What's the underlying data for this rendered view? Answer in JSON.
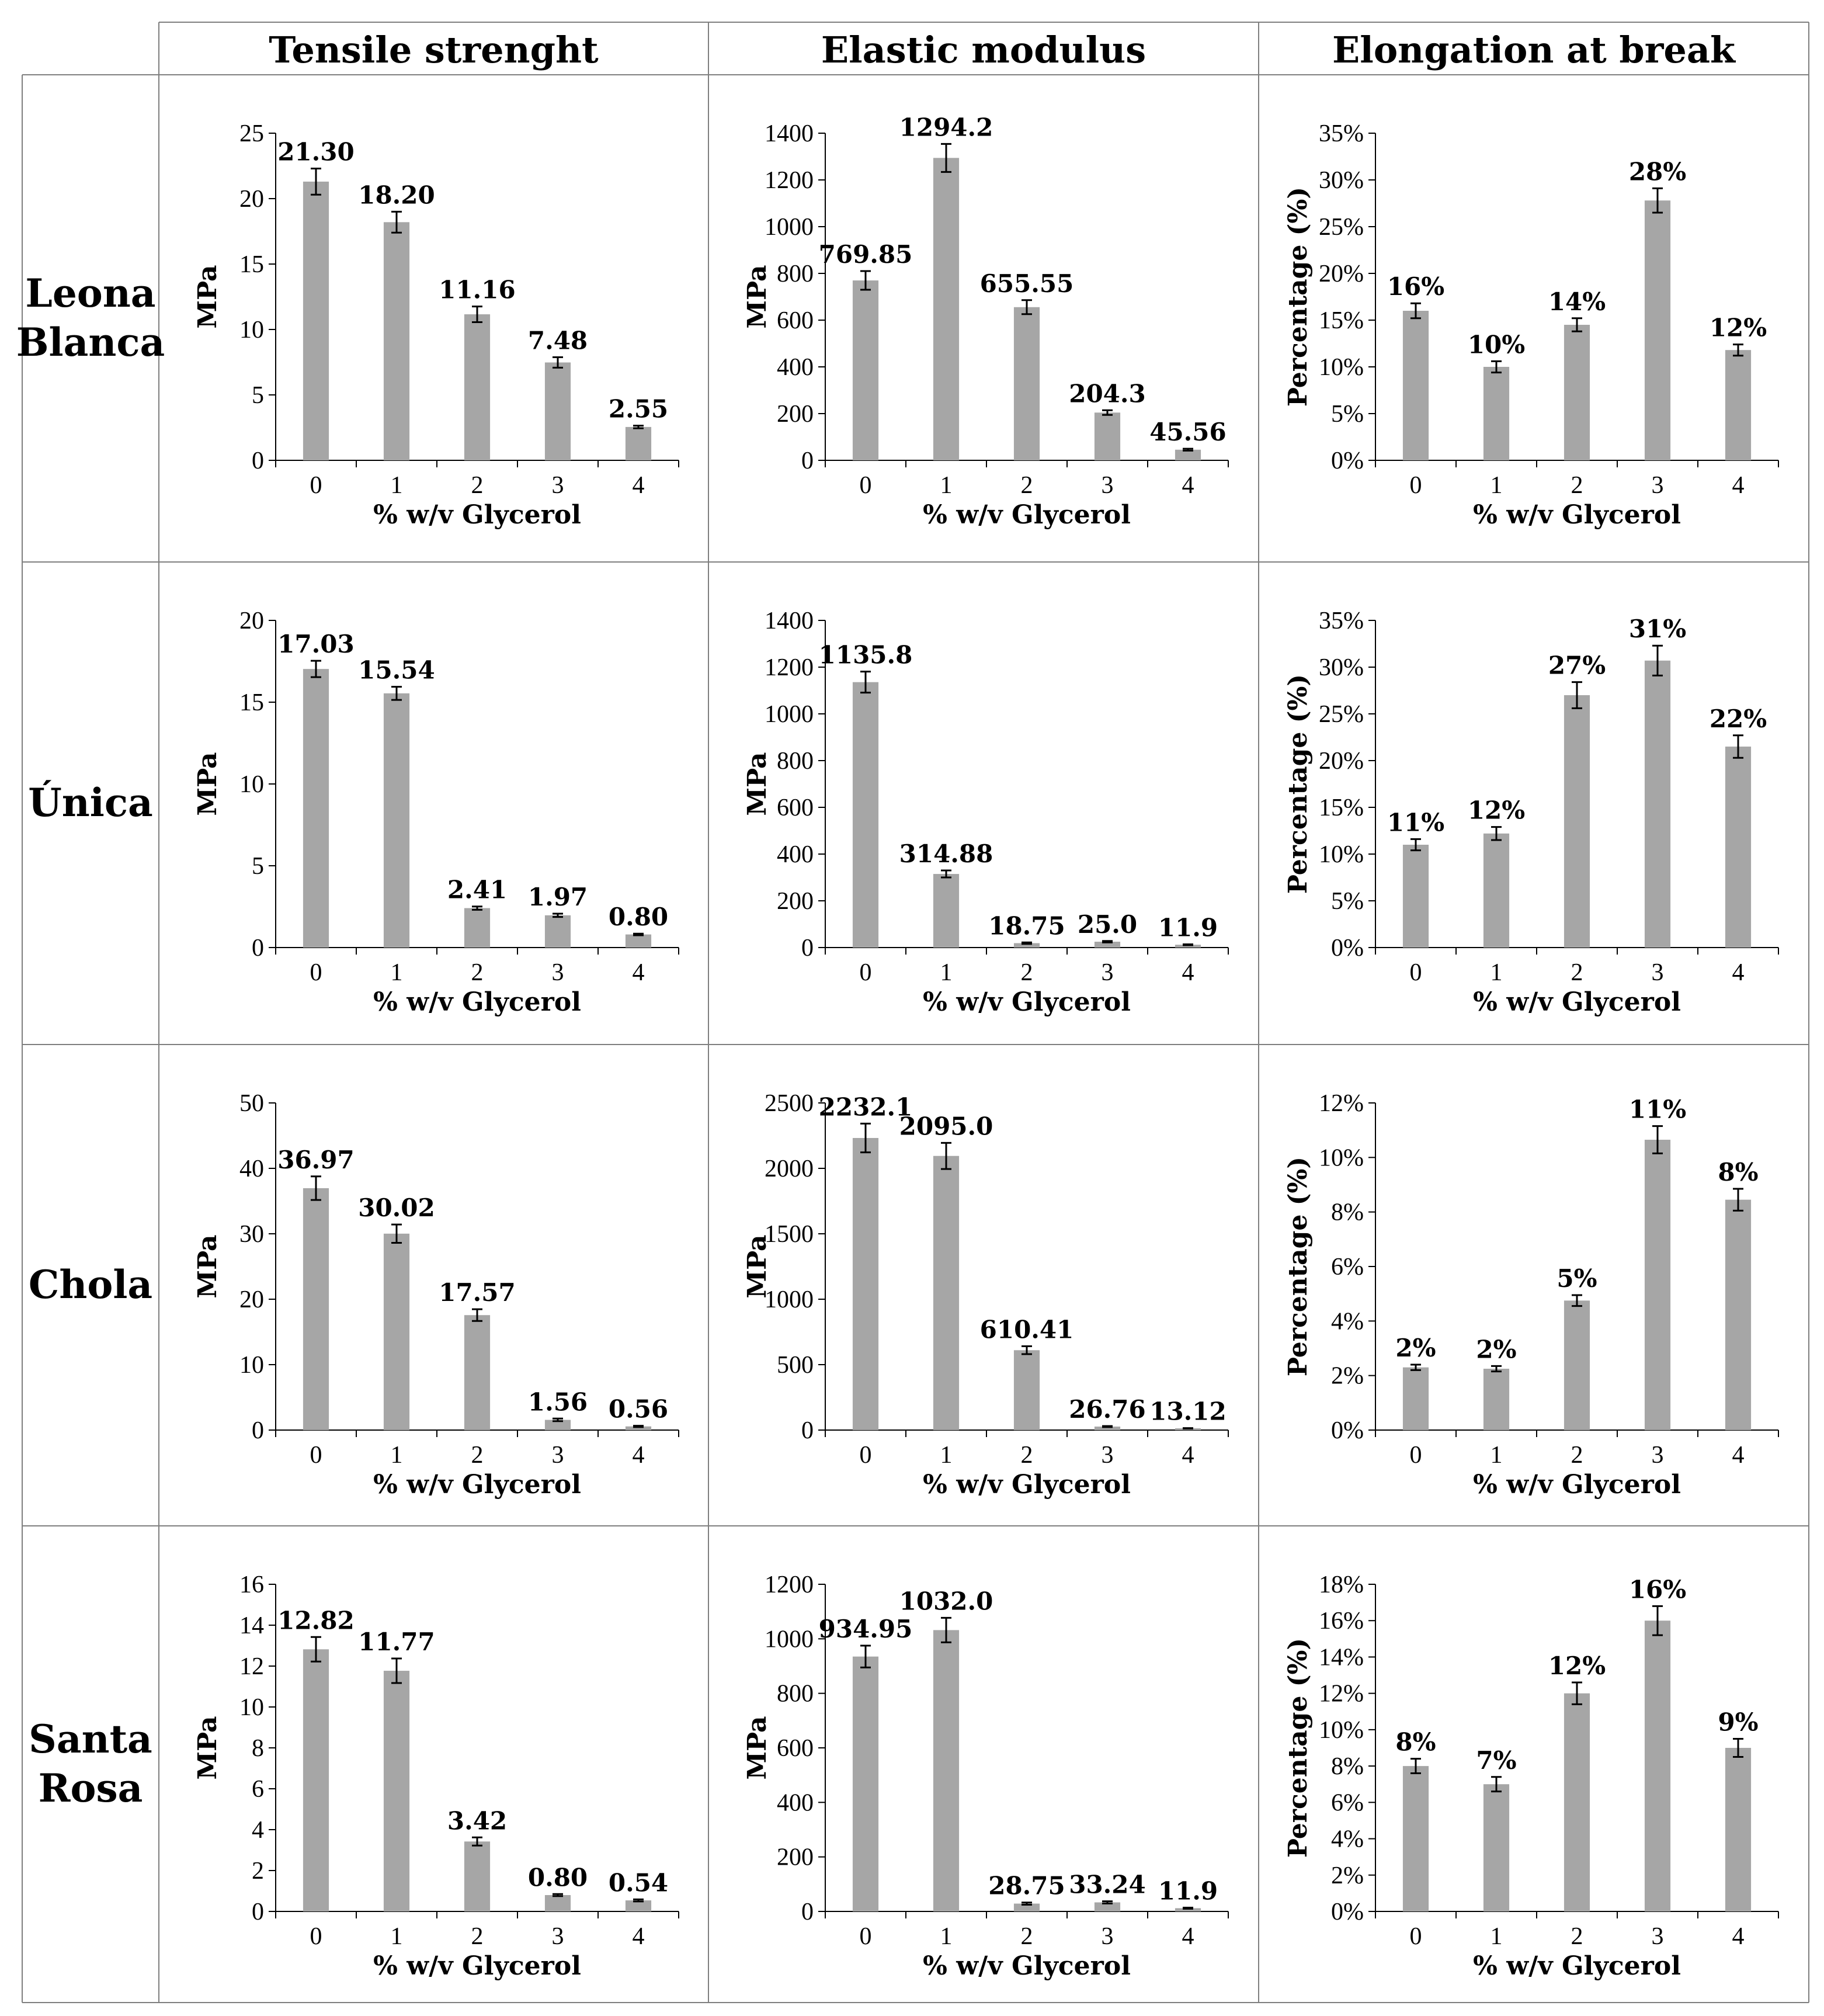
{
  "columns": [
    "Tensile strenght",
    "Elastic modulus",
    "Elongation at break"
  ],
  "rows": [
    [
      "Leona",
      "Blanca"
    ],
    [
      "Única"
    ],
    [
      "Chola"
    ],
    [
      "Santa",
      "Rosa"
    ]
  ],
  "colors": {
    "bar": "#a6a6a6",
    "axis": "#000000",
    "grid_line": "#7f7f7f"
  },
  "chart_data": [
    {
      "type": "bar",
      "title": "Tensile strenght – Leona Blanca",
      "categories": [
        "0",
        "1",
        "2",
        "3",
        "4"
      ],
      "values": [
        21.3,
        18.2,
        11.16,
        7.48,
        2.55
      ],
      "errors": [
        1.0,
        0.8,
        0.6,
        0.4,
        0.1
      ],
      "labels": [
        "21.30",
        "18.20",
        "11.16",
        "7.48",
        "2.55"
      ],
      "ylim": [
        0,
        25
      ],
      "yticks": [
        0,
        5,
        10,
        15,
        20,
        25
      ],
      "ytick_labels": [
        "0",
        "5",
        "10",
        "15",
        "20",
        "25"
      ],
      "ylabel": "MPa",
      "xlabel": "% w/v Glycerol"
    },
    {
      "type": "bar",
      "title": "Elastic modulus – Leona Blanca",
      "categories": [
        "0",
        "1",
        "2",
        "3",
        "4"
      ],
      "values": [
        769.85,
        1294.2,
        655.55,
        204.3,
        45.56
      ],
      "errors": [
        40,
        60,
        30,
        10,
        4
      ],
      "labels": [
        "769.85",
        "1294.2",
        "655.55",
        "204.3",
        "45.56"
      ],
      "ylim": [
        0,
        1400
      ],
      "yticks": [
        0,
        200,
        400,
        600,
        800,
        1000,
        1200,
        1400
      ],
      "ytick_labels": [
        "0",
        "200",
        "400",
        "600",
        "800",
        "1000",
        "1200",
        "1400"
      ],
      "ylabel": "MPa",
      "xlabel": "% w/v Glycerol"
    },
    {
      "type": "bar",
      "title": "Elongation at break – Leona Blanca",
      "categories": [
        "0",
        "1",
        "2",
        "3",
        "4"
      ],
      "values": [
        16,
        10,
        14.5,
        27.8,
        11.8
      ],
      "errors": [
        0.8,
        0.6,
        0.7,
        1.3,
        0.6
      ],
      "labels": [
        "16%",
        "10%",
        "14%",
        "28%",
        "12%"
      ],
      "ylim": [
        0,
        35
      ],
      "yticks": [
        0,
        5,
        10,
        15,
        20,
        25,
        30,
        35
      ],
      "ytick_labels": [
        "0%",
        "5%",
        "10%",
        "15%",
        "20%",
        "25%",
        "30%",
        "35%"
      ],
      "ylabel": "Percentage (%)",
      "xlabel": "% w/v Glycerol"
    },
    {
      "type": "bar",
      "title": "Tensile strenght – Única",
      "categories": [
        "0",
        "1",
        "2",
        "3",
        "4"
      ],
      "values": [
        17.03,
        15.54,
        2.41,
        1.97,
        0.8
      ],
      "errors": [
        0.5,
        0.4,
        0.1,
        0.1,
        0.05
      ],
      "labels": [
        "17.03",
        "15.54",
        "2.41",
        "1.97",
        "0.80"
      ],
      "ylim": [
        0,
        20
      ],
      "yticks": [
        0,
        5,
        10,
        15,
        20
      ],
      "ytick_labels": [
        "0",
        "5",
        "10",
        "15",
        "20"
      ],
      "ylabel": "MPa",
      "xlabel": "% w/v Glycerol"
    },
    {
      "type": "bar",
      "title": "Elastic modulus – Única",
      "categories": [
        "0",
        "1",
        "2",
        "3",
        "4"
      ],
      "values": [
        1135.8,
        314.88,
        18.75,
        25.0,
        11.9
      ],
      "errors": [
        45,
        15,
        3,
        3,
        2
      ],
      "labels": [
        "1135.8",
        "314.88",
        "18.75",
        "25.0",
        "11.9"
      ],
      "ylim": [
        0,
        1400
      ],
      "yticks": [
        0,
        200,
        400,
        600,
        800,
        1000,
        1200,
        1400
      ],
      "ytick_labels": [
        "0",
        "200",
        "400",
        "600",
        "800",
        "1000",
        "1200",
        "1400"
      ],
      "ylabel": "MPa",
      "xlabel": "% w/v Glycerol"
    },
    {
      "type": "bar",
      "title": "Elongation at break – Única",
      "categories": [
        "0",
        "1",
        "2",
        "3",
        "4"
      ],
      "values": [
        11,
        12.2,
        27,
        30.7,
        21.5
      ],
      "errors": [
        0.6,
        0.7,
        1.4,
        1.6,
        1.2
      ],
      "labels": [
        "11%",
        "12%",
        "27%",
        "31%",
        "22%"
      ],
      "ylim": [
        0,
        35
      ],
      "yticks": [
        0,
        5,
        10,
        15,
        20,
        25,
        30,
        35
      ],
      "ytick_labels": [
        "0%",
        "5%",
        "10%",
        "15%",
        "20%",
        "25%",
        "30%",
        "35%"
      ],
      "ylabel": "Percentage (%)",
      "xlabel": "% w/v Glycerol"
    },
    {
      "type": "bar",
      "title": "Tensile strenght – Chola",
      "categories": [
        "0",
        "1",
        "2",
        "3",
        "4"
      ],
      "values": [
        36.97,
        30.02,
        17.57,
        1.56,
        0.56
      ],
      "errors": [
        1.8,
        1.4,
        0.9,
        0.2,
        0.1
      ],
      "labels": [
        "36.97",
        "30.02",
        "17.57",
        "1.56",
        "0.56"
      ],
      "ylim": [
        0,
        50
      ],
      "yticks": [
        0,
        10,
        20,
        30,
        40,
        50
      ],
      "ytick_labels": [
        "0",
        "10",
        "20",
        "30",
        "40",
        "50"
      ],
      "ylabel": "MPa",
      "xlabel": "% w/v Glycerol"
    },
    {
      "type": "bar",
      "title": "Elastic modulus – Chola",
      "categories": [
        "0",
        "1",
        "2",
        "3",
        "4"
      ],
      "values": [
        2232.1,
        2095.0,
        610.41,
        26.76,
        13.12
      ],
      "errors": [
        110,
        100,
        30,
        4,
        2
      ],
      "labels": [
        "2232.1",
        "2095.0",
        "610.41",
        "26.76",
        "13.12"
      ],
      "ylim": [
        0,
        2500
      ],
      "yticks": [
        0,
        500,
        1000,
        1500,
        2000,
        2500
      ],
      "ytick_labels": [
        "0",
        "500",
        "1000",
        "1500",
        "2000",
        "2500"
      ],
      "ylabel": "MPa",
      "xlabel": "% w/v Glycerol"
    },
    {
      "type": "bar",
      "title": "Elongation at break – Chola",
      "categories": [
        "0",
        "1",
        "2",
        "3",
        "4"
      ],
      "values": [
        2.3,
        2.25,
        4.75,
        10.65,
        8.45
      ],
      "errors": [
        0.1,
        0.1,
        0.2,
        0.5,
        0.4
      ],
      "labels": [
        "2%",
        "2%",
        "5%",
        "11%",
        "8%"
      ],
      "ylim": [
        0,
        12
      ],
      "yticks": [
        0,
        2,
        4,
        6,
        8,
        10,
        12
      ],
      "ytick_labels": [
        "0%",
        "2%",
        "4%",
        "6%",
        "8%",
        "10%",
        "12%"
      ],
      "ylabel": "Percentage (%)",
      "xlabel": "% w/v Glycerol"
    },
    {
      "type": "bar",
      "title": "Tensile strenght – Santa Rosa",
      "categories": [
        "0",
        "1",
        "2",
        "3",
        "4"
      ],
      "values": [
        12.82,
        11.77,
        3.42,
        0.8,
        0.54
      ],
      "errors": [
        0.6,
        0.6,
        0.2,
        0.05,
        0.05
      ],
      "labels": [
        "12.82",
        "11.77",
        "3.42",
        "0.80",
        "0.54"
      ],
      "ylim": [
        0,
        16
      ],
      "yticks": [
        0,
        2,
        4,
        6,
        8,
        10,
        12,
        14,
        16
      ],
      "ytick_labels": [
        "0",
        "2",
        "4",
        "6",
        "8",
        "10",
        "12",
        "14",
        "16"
      ],
      "ylabel": "MPa",
      "xlabel": "% w/v Glycerol"
    },
    {
      "type": "bar",
      "title": "Elastic modulus – Santa Rosa",
      "categories": [
        "0",
        "1",
        "2",
        "3",
        "4"
      ],
      "values": [
        934.95,
        1032.0,
        28.75,
        33.24,
        11.9
      ],
      "errors": [
        40,
        45,
        4,
        4,
        2
      ],
      "labels": [
        "934.95",
        "1032.0",
        "28.75",
        "33.24",
        "11.9"
      ],
      "ylim": [
        0,
        1200
      ],
      "yticks": [
        0,
        200,
        400,
        600,
        800,
        1000,
        1200
      ],
      "ytick_labels": [
        "0",
        "200",
        "400",
        "600",
        "800",
        "1000",
        "1200"
      ],
      "ylabel": "MPa",
      "xlabel": "% w/v Glycerol"
    },
    {
      "type": "bar",
      "title": "Elongation at break – Santa Rosa",
      "categories": [
        "0",
        "1",
        "2",
        "3",
        "4"
      ],
      "values": [
        8,
        7,
        12,
        16,
        9
      ],
      "errors": [
        0.4,
        0.4,
        0.6,
        0.8,
        0.5
      ],
      "labels": [
        "8%",
        "7%",
        "12%",
        "16%",
        "9%"
      ],
      "ylim": [
        0,
        18
      ],
      "yticks": [
        0,
        2,
        4,
        6,
        8,
        10,
        12,
        14,
        16,
        18
      ],
      "ytick_labels": [
        "0%",
        "2%",
        "4%",
        "6%",
        "8%",
        "10%",
        "12%",
        "14%",
        "16%",
        "18%"
      ],
      "ylabel": "Percentage (%)",
      "xlabel": "% w/v Glycerol"
    }
  ]
}
